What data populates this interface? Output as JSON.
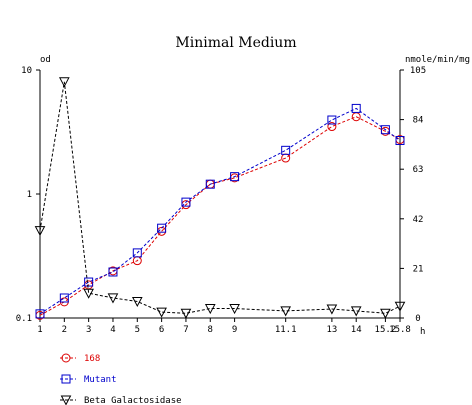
{
  "chart_data": {
    "type": "line",
    "title": "Minimal Medium",
    "xlabel": "h",
    "ylabel_left": "od",
    "ylabel_right": "nmole/min/mg",
    "x_ticks": [
      1,
      2,
      3,
      4,
      5,
      6,
      7,
      8,
      9,
      11.1,
      13,
      14,
      15.2,
      15.8
    ],
    "x_tick_labels": [
      "1",
      "2",
      "3",
      "4",
      "5",
      "6",
      "7",
      "8",
      "9",
      "11.1",
      "13",
      "14",
      "15.2",
      "15.8"
    ],
    "xlim": [
      1,
      15.8
    ],
    "y_left_scale": "log",
    "y_left_ticks": [
      0.1,
      1,
      10
    ],
    "y_left_tick_labels": [
      "0.1",
      "1",
      "10"
    ],
    "ylim_left": [
      0.1,
      10
    ],
    "y_right_ticks": [
      0,
      21,
      42,
      63,
      84,
      105
    ],
    "y_right_tick_labels": [
      "0",
      "21",
      "42",
      "63",
      "84",
      "105"
    ],
    "ylim_right": [
      0,
      105
    ],
    "grid": false,
    "legend_position": "bottom-left",
    "series": [
      {
        "name": "168",
        "axis": "left",
        "color": "#dd0000",
        "marker": "circle",
        "linestyle": "dashed",
        "points": [
          [
            1,
            0.105
          ],
          [
            2,
            0.135
          ],
          [
            3,
            0.185
          ],
          [
            4,
            0.24
          ],
          [
            5,
            0.29
          ],
          [
            6,
            0.5
          ],
          [
            7,
            0.82
          ],
          [
            8,
            1.2
          ],
          [
            9,
            1.35
          ],
          [
            11.1,
            1.95
          ],
          [
            13,
            3.5
          ],
          [
            14,
            4.2
          ],
          [
            15.2,
            3.2
          ],
          [
            15.8,
            2.75
          ]
        ]
      },
      {
        "name": "Mutant",
        "axis": "left",
        "color": "#0000cc",
        "marker": "square",
        "linestyle": "dashed",
        "points": [
          [
            1,
            0.108
          ],
          [
            2,
            0.145
          ],
          [
            3,
            0.195
          ],
          [
            4,
            0.235
          ],
          [
            5,
            0.335
          ],
          [
            6,
            0.53
          ],
          [
            7,
            0.86
          ],
          [
            8,
            1.2
          ],
          [
            9,
            1.38
          ],
          [
            11.1,
            2.25
          ],
          [
            13,
            3.95
          ],
          [
            14,
            4.9
          ],
          [
            15.2,
            3.3
          ],
          [
            15.8,
            2.7
          ]
        ]
      },
      {
        "name": "Beta Galactosidase",
        "axis": "right",
        "color": "#000000",
        "marker": "triangle-down",
        "linestyle": "dashed",
        "points": [
          [
            1,
            37
          ],
          [
            2,
            100
          ],
          [
            3,
            10.5
          ],
          [
            4,
            8.5
          ],
          [
            5,
            7
          ],
          [
            6,
            2.5
          ],
          [
            7,
            2
          ],
          [
            8,
            4
          ],
          [
            9,
            4
          ],
          [
            11.1,
            3
          ],
          [
            13,
            3.8
          ],
          [
            14,
            3
          ],
          [
            15.2,
            2
          ],
          [
            15.8,
            5
          ]
        ]
      }
    ]
  }
}
